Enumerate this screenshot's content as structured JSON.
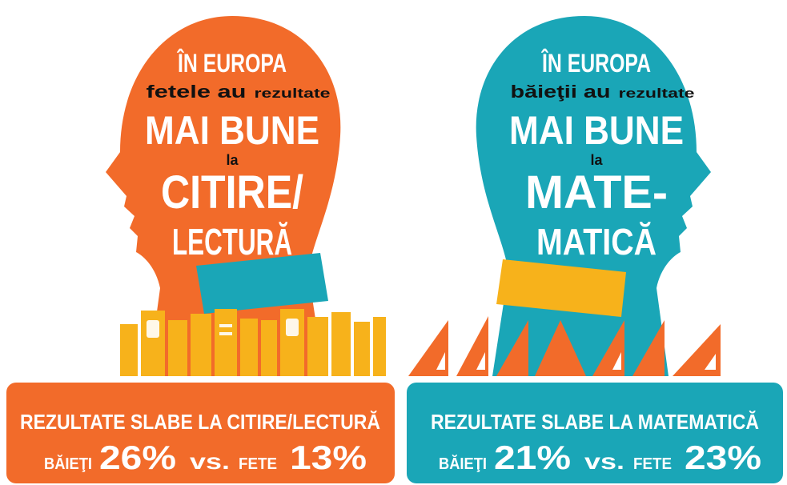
{
  "panels": [
    {
      "heading": "ÎN EUROPA",
      "subject": "fetele au",
      "phrase": "rezultate",
      "emphasis": "MAI BUNE",
      "connector": "la",
      "field_lines": [
        "CITIRE/",
        "LECTURĂ"
      ],
      "result": {
        "title": "REZULTATE SLABE LA CITIRE/LECTURĂ",
        "boys_label": "BĂIEŢI",
        "boys": "26%",
        "vs": "vs.",
        "girls_label": "FETE",
        "girls": "13%"
      }
    },
    {
      "heading": "ÎN EUROPA",
      "subject": "băieţii au",
      "phrase": "rezultate",
      "emphasis": "MAI BUNE",
      "connector": "la",
      "field_lines": [
        "MATE-",
        "MATICĂ"
      ],
      "result": {
        "title": "REZULTATE SLABE LA MATEMATICĂ",
        "boys_label": "BĂIEŢI",
        "boys": "21%",
        "vs": "vs.",
        "girls_label": "FETE",
        "girls": "23%"
      }
    }
  ]
}
